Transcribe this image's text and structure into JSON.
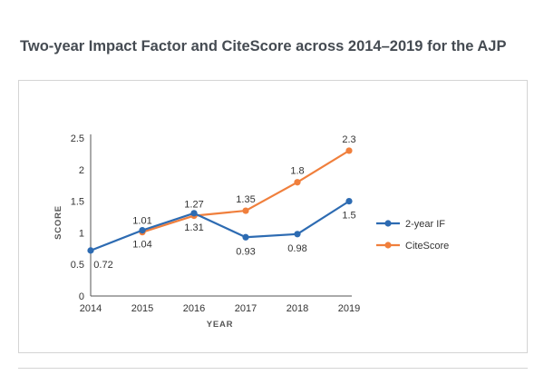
{
  "page": {
    "title": "Two-year Impact Factor and CiteScore across 2014–2019 for the AJP"
  },
  "chart_data": {
    "type": "line",
    "title": "",
    "xlabel": "YEAR",
    "ylabel": "SCORE",
    "categories": [
      "2014",
      "2015",
      "2016",
      "2017",
      "2018",
      "2019"
    ],
    "ylim": [
      0,
      2.5
    ],
    "yticks": [
      "0",
      "0.5",
      "1",
      "1.5",
      "2",
      "2.5"
    ],
    "grid": false,
    "legend_position": "right",
    "series": [
      {
        "name": "2-year IF",
        "color": "#2d6bb2",
        "values": [
          0.72,
          1.04,
          1.31,
          0.93,
          0.98,
          1.5
        ],
        "labels": [
          "0.72",
          "1.04",
          "1.31",
          "0.93",
          "0.98",
          "1.5"
        ],
        "label_side": [
          "below",
          "below",
          "below",
          "below",
          "below",
          "below"
        ]
      },
      {
        "name": "CiteScore",
        "color": "#f07f3c",
        "values": [
          null,
          1.01,
          1.27,
          1.35,
          1.8,
          2.3
        ],
        "labels": [
          null,
          "1.01",
          "1.27",
          "1.35",
          "1.8",
          "2.3"
        ],
        "label_side": [
          null,
          "above",
          "above",
          "above",
          "above",
          "above"
        ]
      }
    ]
  }
}
